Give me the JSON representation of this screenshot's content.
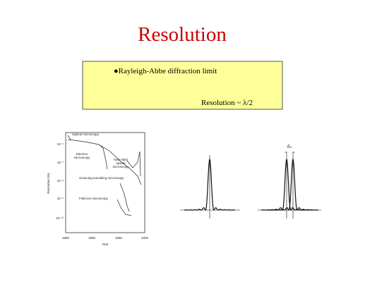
{
  "slide": {
    "title": "Resolution",
    "box": {
      "bullet": "●Rayleigh-Abbe diffraction limit",
      "formula": "Resolution ~ λ/2"
    },
    "figure": {
      "y_axis_label": "Resolution (m)",
      "x_axis_label": "Year",
      "x_ticks": [
        "1850",
        "1900",
        "1950",
        "2000"
      ],
      "y_ticks": [
        "10⁻⁶",
        "10⁻⁷",
        "10⁻⁸",
        "10⁻⁹",
        "10⁻¹⁰"
      ],
      "annotations": [
        "Optical microscopy",
        "Electron microscopy",
        "Near-field optical microscopy",
        "Scanning tunnelling microscopy",
        "Field ion microscopy"
      ]
    },
    "separation_label": "δ₀"
  }
}
